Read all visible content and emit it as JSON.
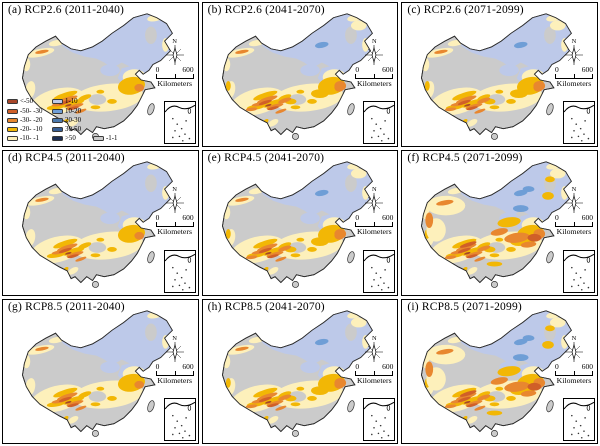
{
  "figure": {
    "kind": "map-grid",
    "description": "3x3 grid of China maps showing projected change classes for three RCP emission scenarios across three future periods",
    "rows": 3,
    "cols": 3
  },
  "panels": [
    {
      "id": "a",
      "title": "(a) RCP2.6 (2011-2040)",
      "scenario": "RCP2.6",
      "period": "2011-2040",
      "intensity": 1,
      "has_legend": true
    },
    {
      "id": "b",
      "title": "(b) RCP2.6 (2041-2070)",
      "scenario": "RCP2.6",
      "period": "2041-2070",
      "intensity": 2,
      "has_legend": false
    },
    {
      "id": "c",
      "title": "(c) RCP2.6 (2071-2099)",
      "scenario": "RCP2.6",
      "period": "2071-2099",
      "intensity": 2,
      "has_legend": false
    },
    {
      "id": "d",
      "title": "(d) RCP4.5 (2011-2040)",
      "scenario": "RCP4.5",
      "period": "2011-2040",
      "intensity": 1,
      "has_legend": false
    },
    {
      "id": "e",
      "title": "(e) RCP4.5 (2041-2070)",
      "scenario": "RCP4.5",
      "period": "2041-2070",
      "intensity": 2,
      "has_legend": false
    },
    {
      "id": "f",
      "title": "(f) RCP4.5 (2071-2099)",
      "scenario": "RCP4.5",
      "period": "2071-2099",
      "intensity": 3,
      "has_legend": false
    },
    {
      "id": "g",
      "title": "(g) RCP8.5 (2011-2040)",
      "scenario": "RCP8.5",
      "period": "2011-2040",
      "intensity": 1,
      "has_legend": false
    },
    {
      "id": "h",
      "title": "(h) RCP8.5 (2041-2070)",
      "scenario": "RCP8.5",
      "period": "2041-2070",
      "intensity": 2,
      "has_legend": false
    },
    {
      "id": "i",
      "title": "(i) RCP8.5 (2071-2099)",
      "scenario": "RCP8.5",
      "period": "2071-2099",
      "intensity": 3,
      "has_legend": false
    }
  ],
  "map_furniture": {
    "north_label": "N",
    "scale_start": "0",
    "scale_end": "600",
    "scale_unit": "Kilometers"
  },
  "palette": {
    "p_lt_neg50": "#a8472a",
    "p_neg50_neg30": "#d05f28",
    "p_neg30_neg20": "#e8872f",
    "p_neg20_neg10": "#f2b705",
    "p_neg10_neg1": "#fdf0bb",
    "p_1_10": "#bdc9e9",
    "p_10_20": "#6f9ed6",
    "p_20_30": "#4a79ad",
    "p_30_50": "#365e94",
    "p_gt_50": "#1c2e52",
    "p_neg1_1": "#cbcbcb"
  },
  "legend": {
    "rows": [
      [
        {
          "label": "<-50",
          "palette": "p_lt_neg50"
        },
        {
          "label": "1-10",
          "palette": "p_1_10"
        }
      ],
      [
        {
          "label": "-50- -30",
          "palette": "p_neg50_neg30"
        },
        {
          "label": "10-20",
          "palette": "p_10_20"
        }
      ],
      [
        {
          "label": "-30- -20",
          "palette": "p_neg30_neg20"
        },
        {
          "label": "20-30",
          "palette": "p_20_30"
        }
      ],
      [
        {
          "label": "-20- -10",
          "palette": "p_neg20_neg10"
        },
        {
          "label": "30-50",
          "palette": "p_30_50"
        }
      ],
      [
        {
          "label": "-10- -1",
          "palette": "p_neg10_neg1"
        },
        {
          "label": ">50",
          "palette": "p_gt_50"
        },
        {
          "label": "-1-1",
          "palette": "p_neg1_1"
        }
      ]
    ]
  },
  "colors": {
    "background": "#ffffff",
    "map_outline": "#2b2b2b",
    "no_change_fill": "#cbcbcb"
  }
}
